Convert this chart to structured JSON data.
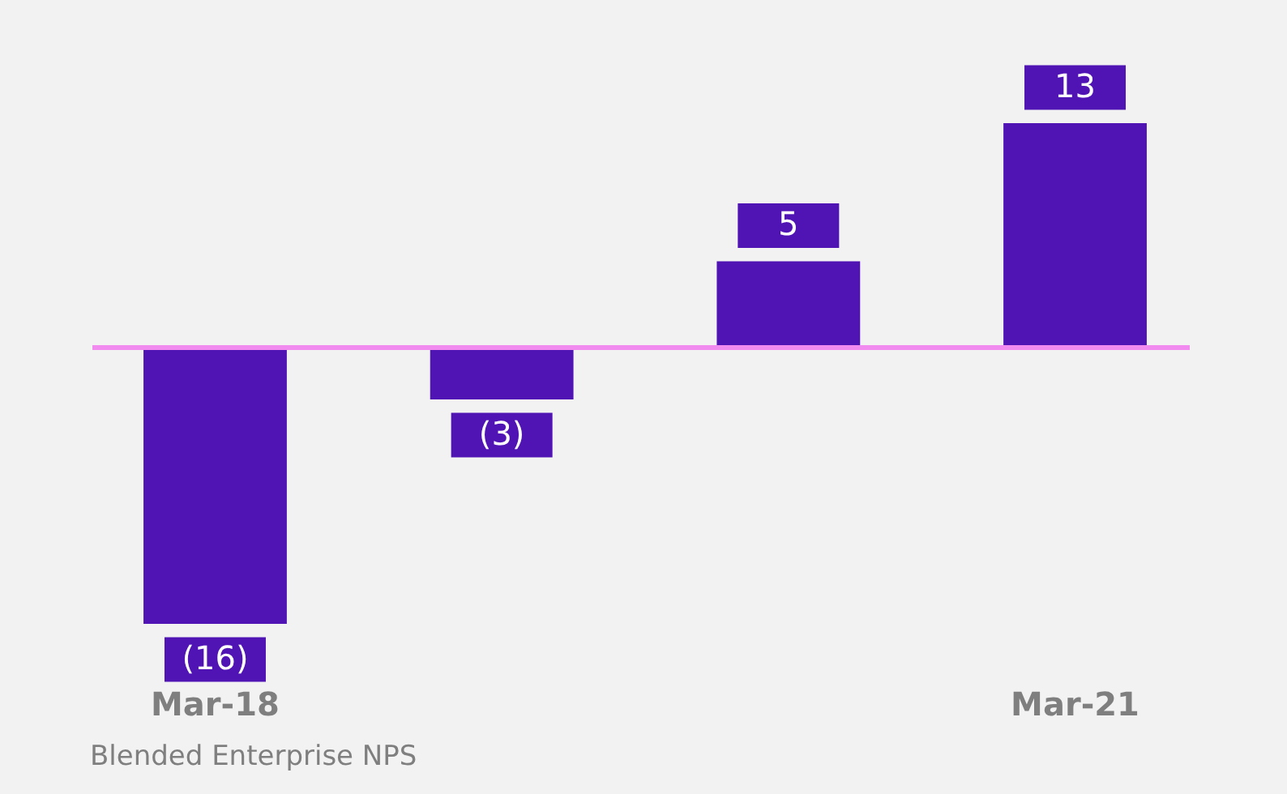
{
  "chart_data": {
    "type": "bar",
    "categories": [
      "Mar-18",
      null,
      null,
      "Mar-21"
    ],
    "values": [
      -16,
      -3,
      5,
      13
    ],
    "value_labels": [
      "(16)",
      "(3)",
      "5",
      "13"
    ],
    "color": "#5014b4",
    "ref_lines": [
      {
        "axis": "y",
        "value": 0,
        "color": "#f28bf0"
      }
    ],
    "tick_labels": "x",
    "annotations": [
      "Blended Enterprise NPS"
    ]
  }
}
